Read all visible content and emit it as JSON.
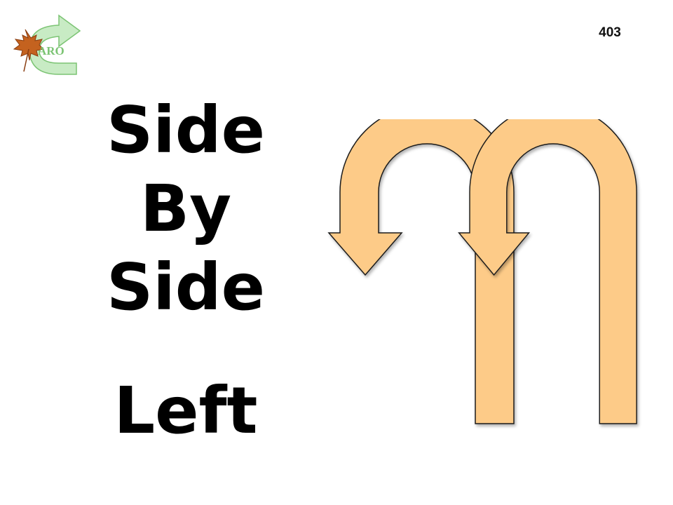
{
  "slide": {
    "number": "403",
    "title_lines": [
      "Side",
      "By",
      "Side"
    ],
    "direction": "Left"
  },
  "logo": {
    "text": "ARO",
    "icon": "maple-leaf-icon",
    "arrow_icon": "curved-arrow-icon"
  },
  "arrows": {
    "icon": "u-turn-left-arrow-icon",
    "count": 2,
    "fill_color": "#FDCB88",
    "stroke_color": "#1a1a1a"
  }
}
